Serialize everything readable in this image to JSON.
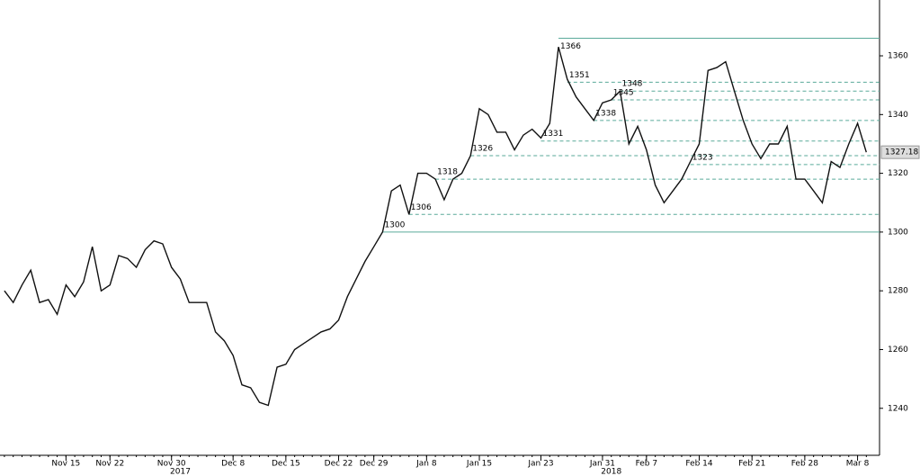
{
  "chart_data": {
    "type": "line",
    "color": "#111111",
    "categories": [
      null,
      null,
      null,
      null,
      null,
      null,
      null,
      "Nov 15",
      null,
      null,
      null,
      null,
      "Nov 22",
      null,
      null,
      null,
      null,
      null,
      null,
      "Nov 30",
      null,
      null,
      null,
      null,
      null,
      null,
      "Dec 8",
      null,
      null,
      null,
      null,
      null,
      "Dec 15",
      null,
      null,
      null,
      null,
      null,
      "Dec 22",
      null,
      null,
      null,
      "Dec 29",
      null,
      null,
      null,
      null,
      null,
      "Jan 8",
      null,
      null,
      null,
      null,
      null,
      "Jan 15",
      null,
      null,
      null,
      null,
      null,
      null,
      "Jan 23",
      null,
      null,
      null,
      null,
      null,
      null,
      "Jan 31",
      null,
      null,
      null,
      null,
      "Feb 7",
      null,
      null,
      null,
      null,
      null,
      "Feb 14",
      null,
      null,
      null,
      null,
      null,
      "Feb 21",
      null,
      null,
      null,
      null,
      null,
      "Feb 28",
      null,
      null,
      null,
      null,
      null,
      "Mar 8",
      null
    ],
    "values": [
      1280,
      1276,
      1282,
      1287,
      1276,
      1277,
      1272,
      1282,
      1278,
      1283,
      1295,
      1280,
      1282,
      1292,
      1291,
      1288,
      1294,
      1297,
      1296,
      1288,
      1284,
      1276,
      1276,
      1276,
      1266,
      1263,
      1258,
      1248,
      1247,
      1242,
      1241,
      1254,
      1255,
      1260,
      1262,
      1264,
      1266,
      1267,
      1270,
      1278,
      1284,
      1290,
      1295,
      1300,
      1314,
      1316,
      1306,
      1320,
      1320,
      1318,
      1311,
      1318,
      1320,
      1326,
      1342,
      1340,
      1334,
      1334,
      1328,
      1333,
      1335,
      1332,
      1337,
      1363,
      1352,
      1346,
      1342,
      1338,
      1344,
      1345,
      1348,
      1330,
      1336,
      1328,
      1316,
      1310,
      1314,
      1318,
      1324,
      1330,
      1355,
      1356,
      1358,
      1348,
      1338,
      1330,
      1325,
      1330,
      1330,
      1336,
      1318,
      1318,
      1314,
      1310,
      1324,
      1322,
      1330,
      1337,
      1327.18
    ],
    "years": [
      {
        "value": 20,
        "label": "2017"
      },
      {
        "value": 69,
        "label": "2018"
      }
    ],
    "levels": [
      {
        "value": 1366,
        "style": "solid"
      },
      {
        "value": 1351,
        "style": "dashed"
      },
      {
        "value": 1348,
        "style": "dashed"
      },
      {
        "value": 1345,
        "style": "dashed"
      },
      {
        "value": 1338,
        "style": "dashed"
      },
      {
        "value": 1331,
        "style": "dashed"
      },
      {
        "value": 1326,
        "style": "dashed"
      },
      {
        "value": 1323,
        "style": "dashed"
      },
      {
        "value": 1318,
        "style": "dashed"
      },
      {
        "value": 1306,
        "style": "dashed"
      },
      {
        "value": 1300,
        "style": "solid"
      }
    ],
    "level_color": "#5aaa9a",
    "ylim": [
      1224,
      1379
    ],
    "yticks": [
      1240,
      1260,
      1280,
      1300,
      1320,
      1340,
      1360
    ]
  }
}
